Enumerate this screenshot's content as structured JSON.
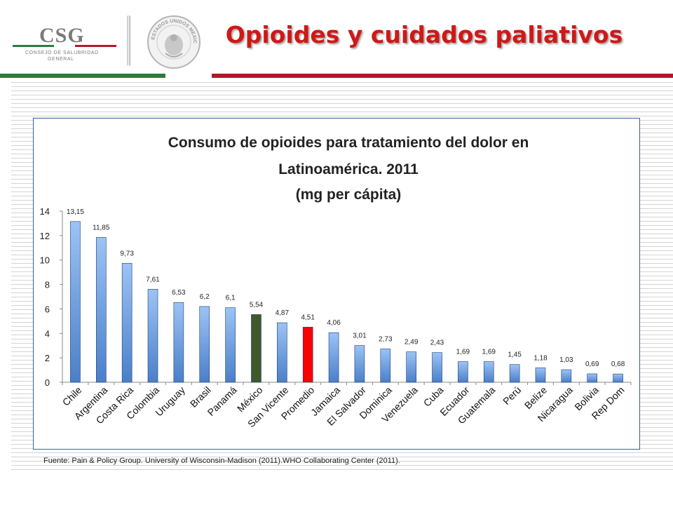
{
  "header": {
    "logo_text": "CSG",
    "logo_sub1": "CONSEJO DE SALUBRIDAD",
    "logo_sub2": "GENERAL",
    "seal_text": "ESTADOS UNIDOS MEXICANOS",
    "title": "Opioides y cuidados paliativos"
  },
  "colors": {
    "title": "#d01818",
    "band_green": "#2f7a3b",
    "band_red": "#b0182a",
    "bar_default": "#4a7fc9",
    "bar_mexico": "#3e5a2a",
    "bar_promedio": "#ff0000"
  },
  "chart_data": {
    "type": "bar",
    "title_lines": [
      "Consumo de opioides para tratamiento del dolor en",
      "Latinoamérica. 2011",
      "(mg per cápita)"
    ],
    "categories": [
      "Chile",
      "Argentina",
      "Costa Rica",
      "Colombia",
      "Uruguay",
      "Brasil",
      "Panamá",
      "México",
      "San Vicente",
      "Promedio",
      "Jamaica",
      "El Salvador",
      "Dominica",
      "Venezuela",
      "Cuba",
      "Ecuador",
      "Guatemala",
      "Perú",
      "Belize",
      "Nicaragua",
      "Bolivia",
      "Rep Dom"
    ],
    "values": [
      13.15,
      11.85,
      9.73,
      7.61,
      6.53,
      6.2,
      6.1,
      5.54,
      4.87,
      4.51,
      4.06,
      3.01,
      2.73,
      2.49,
      2.43,
      1.69,
      1.69,
      1.45,
      1.18,
      1.03,
      0.69,
      0.68
    ],
    "value_labels": [
      "13,15",
      "11,85",
      "9,73",
      "7,61",
      "6,53",
      "6,2",
      "6,1",
      "5,54",
      "4,87",
      "4,51",
      "4,06",
      "3,01",
      "2,73",
      "2,49",
      "2,43",
      "1,69",
      "1,69",
      "1,45",
      "1,18",
      "1,03",
      "0,69",
      "0,68"
    ],
    "highlight": {
      "México": "bar_mexico",
      "Promedio": "bar_promedio"
    },
    "ylim": [
      0,
      14
    ],
    "yticks": [
      0,
      2,
      4,
      6,
      8,
      10,
      12,
      14
    ],
    "xlabel": "",
    "ylabel": "",
    "grid": false,
    "legend": "none"
  },
  "footer": {
    "source": "Fuente: Pain & Policy Group. University of Wisconsin-Madison (2011).WHO Collaborating Center (2011)."
  }
}
